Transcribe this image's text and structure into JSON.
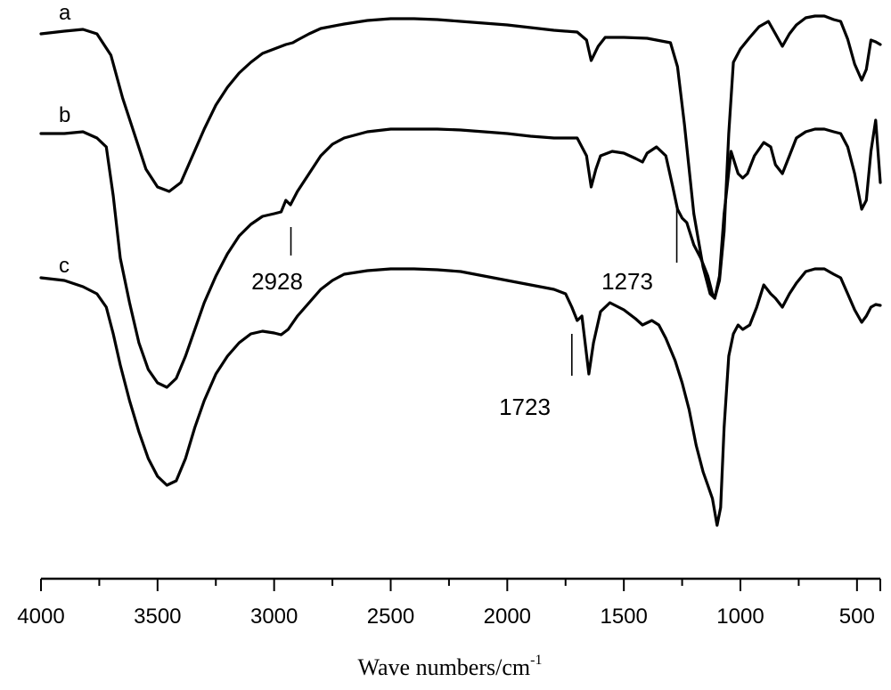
{
  "chart_data": {
    "type": "line",
    "xlabel": "Wave numbers/cm",
    "xlabel_superscript": "-1",
    "ylabel": "",
    "xlim": [
      4000,
      400
    ],
    "x_reversed": true,
    "grid": false,
    "ticks": [
      4000,
      3500,
      3000,
      2500,
      2000,
      1500,
      1000,
      500
    ],
    "tick_labels": [
      "4000",
      "3500",
      "3000",
      "2500",
      "2000",
      "1500",
      "1000",
      "500"
    ],
    "series": [
      {
        "name": "a",
        "points": [
          [
            4000,
            38
          ],
          [
            3900,
            35
          ],
          [
            3820,
            33
          ],
          [
            3760,
            38
          ],
          [
            3700,
            62
          ],
          [
            3650,
            110
          ],
          [
            3600,
            150
          ],
          [
            3550,
            190
          ],
          [
            3500,
            210
          ],
          [
            3450,
            215
          ],
          [
            3400,
            205
          ],
          [
            3350,
            175
          ],
          [
            3300,
            145
          ],
          [
            3250,
            118
          ],
          [
            3200,
            98
          ],
          [
            3150,
            82
          ],
          [
            3100,
            70
          ],
          [
            3050,
            60
          ],
          [
            3000,
            55
          ],
          [
            2950,
            50
          ],
          [
            2920,
            48
          ],
          [
            2900,
            45
          ],
          [
            2850,
            38
          ],
          [
            2800,
            32
          ],
          [
            2700,
            27
          ],
          [
            2600,
            23
          ],
          [
            2500,
            21
          ],
          [
            2400,
            21
          ],
          [
            2300,
            22
          ],
          [
            2200,
            24
          ],
          [
            2100,
            26
          ],
          [
            2000,
            28
          ],
          [
            1900,
            31
          ],
          [
            1800,
            34
          ],
          [
            1700,
            36
          ],
          [
            1660,
            45
          ],
          [
            1640,
            68
          ],
          [
            1610,
            52
          ],
          [
            1580,
            42
          ],
          [
            1500,
            42
          ],
          [
            1400,
            43
          ],
          [
            1300,
            48
          ],
          [
            1270,
            75
          ],
          [
            1240,
            140
          ],
          [
            1200,
            240
          ],
          [
            1160,
            300
          ],
          [
            1130,
            330
          ],
          [
            1110,
            335
          ],
          [
            1090,
            315
          ],
          [
            1070,
            260
          ],
          [
            1050,
            150
          ],
          [
            1030,
            70
          ],
          [
            1000,
            55
          ],
          [
            960,
            42
          ],
          [
            920,
            30
          ],
          [
            880,
            24
          ],
          [
            850,
            38
          ],
          [
            820,
            52
          ],
          [
            790,
            38
          ],
          [
            760,
            28
          ],
          [
            720,
            20
          ],
          [
            680,
            18
          ],
          [
            640,
            18
          ],
          [
            600,
            22
          ],
          [
            570,
            24
          ],
          [
            540,
            44
          ],
          [
            510,
            72
          ],
          [
            480,
            90
          ],
          [
            460,
            78
          ],
          [
            440,
            45
          ],
          [
            420,
            47
          ],
          [
            400,
            50
          ]
        ]
      },
      {
        "name": "b",
        "points": [
          [
            4000,
            150
          ],
          [
            3900,
            150
          ],
          [
            3820,
            148
          ],
          [
            3760,
            155
          ],
          [
            3720,
            165
          ],
          [
            3690,
            220
          ],
          [
            3660,
            290
          ],
          [
            3620,
            340
          ],
          [
            3580,
            385
          ],
          [
            3540,
            415
          ],
          [
            3500,
            430
          ],
          [
            3460,
            435
          ],
          [
            3420,
            425
          ],
          [
            3380,
            400
          ],
          [
            3340,
            370
          ],
          [
            3300,
            340
          ],
          [
            3250,
            310
          ],
          [
            3200,
            285
          ],
          [
            3150,
            265
          ],
          [
            3100,
            252
          ],
          [
            3050,
            243
          ],
          [
            3000,
            240
          ],
          [
            2970,
            238
          ],
          [
            2950,
            225
          ],
          [
            2930,
            230
          ],
          [
            2900,
            215
          ],
          [
            2850,
            195
          ],
          [
            2800,
            175
          ],
          [
            2750,
            162
          ],
          [
            2700,
            155
          ],
          [
            2600,
            148
          ],
          [
            2500,
            145
          ],
          [
            2400,
            145
          ],
          [
            2300,
            145
          ],
          [
            2200,
            146
          ],
          [
            2100,
            148
          ],
          [
            2000,
            150
          ],
          [
            1900,
            153
          ],
          [
            1800,
            155
          ],
          [
            1700,
            155
          ],
          [
            1660,
            175
          ],
          [
            1640,
            210
          ],
          [
            1620,
            190
          ],
          [
            1600,
            175
          ],
          [
            1550,
            170
          ],
          [
            1500,
            172
          ],
          [
            1450,
            178
          ],
          [
            1420,
            182
          ],
          [
            1400,
            172
          ],
          [
            1360,
            165
          ],
          [
            1320,
            175
          ],
          [
            1290,
            210
          ],
          [
            1270,
            235
          ],
          [
            1250,
            245
          ],
          [
            1230,
            250
          ],
          [
            1200,
            275
          ],
          [
            1170,
            290
          ],
          [
            1140,
            310
          ],
          [
            1120,
            330
          ],
          [
            1110,
            335
          ],
          [
            1090,
            310
          ],
          [
            1070,
            240
          ],
          [
            1040,
            170
          ],
          [
            1010,
            195
          ],
          [
            990,
            200
          ],
          [
            970,
            195
          ],
          [
            940,
            175
          ],
          [
            900,
            160
          ],
          [
            870,
            165
          ],
          [
            850,
            185
          ],
          [
            820,
            195
          ],
          [
            790,
            175
          ],
          [
            760,
            155
          ],
          [
            720,
            148
          ],
          [
            680,
            145
          ],
          [
            640,
            145
          ],
          [
            600,
            148
          ],
          [
            570,
            150
          ],
          [
            540,
            165
          ],
          [
            510,
            195
          ],
          [
            480,
            235
          ],
          [
            460,
            225
          ],
          [
            440,
            170
          ],
          [
            420,
            135
          ],
          [
            400,
            205
          ]
        ]
      },
      {
        "name": "c",
        "points": [
          [
            4000,
            312
          ],
          [
            3900,
            315
          ],
          [
            3820,
            322
          ],
          [
            3760,
            330
          ],
          [
            3720,
            345
          ],
          [
            3690,
            375
          ],
          [
            3660,
            410
          ],
          [
            3620,
            450
          ],
          [
            3580,
            485
          ],
          [
            3540,
            515
          ],
          [
            3500,
            535
          ],
          [
            3460,
            545
          ],
          [
            3420,
            540
          ],
          [
            3380,
            515
          ],
          [
            3340,
            480
          ],
          [
            3300,
            450
          ],
          [
            3250,
            420
          ],
          [
            3200,
            400
          ],
          [
            3150,
            385
          ],
          [
            3100,
            375
          ],
          [
            3050,
            372
          ],
          [
            3000,
            374
          ],
          [
            2970,
            376
          ],
          [
            2940,
            370
          ],
          [
            2900,
            355
          ],
          [
            2850,
            340
          ],
          [
            2800,
            325
          ],
          [
            2750,
            315
          ],
          [
            2700,
            308
          ],
          [
            2600,
            304
          ],
          [
            2500,
            302
          ],
          [
            2400,
            302
          ],
          [
            2300,
            303
          ],
          [
            2200,
            305
          ],
          [
            2100,
            310
          ],
          [
            2000,
            315
          ],
          [
            1900,
            320
          ],
          [
            1800,
            325
          ],
          [
            1750,
            330
          ],
          [
            1723,
            345
          ],
          [
            1700,
            360
          ],
          [
            1680,
            355
          ],
          [
            1650,
            420
          ],
          [
            1630,
            385
          ],
          [
            1600,
            350
          ],
          [
            1560,
            340
          ],
          [
            1500,
            348
          ],
          [
            1450,
            358
          ],
          [
            1420,
            365
          ],
          [
            1380,
            360
          ],
          [
            1350,
            365
          ],
          [
            1320,
            380
          ],
          [
            1280,
            405
          ],
          [
            1250,
            430
          ],
          [
            1220,
            460
          ],
          [
            1190,
            500
          ],
          [
            1160,
            530
          ],
          [
            1140,
            545
          ],
          [
            1120,
            560
          ],
          [
            1100,
            590
          ],
          [
            1085,
            570
          ],
          [
            1070,
            480
          ],
          [
            1050,
            400
          ],
          [
            1030,
            375
          ],
          [
            1010,
            365
          ],
          [
            990,
            370
          ],
          [
            960,
            365
          ],
          [
            930,
            345
          ],
          [
            900,
            320
          ],
          [
            870,
            330
          ],
          [
            850,
            335
          ],
          [
            820,
            345
          ],
          [
            790,
            330
          ],
          [
            760,
            318
          ],
          [
            720,
            305
          ],
          [
            680,
            302
          ],
          [
            640,
            302
          ],
          [
            600,
            308
          ],
          [
            570,
            312
          ],
          [
            540,
            330
          ],
          [
            510,
            348
          ],
          [
            480,
            362
          ],
          [
            460,
            355
          ],
          [
            440,
            345
          ],
          [
            420,
            342
          ],
          [
            400,
            343
          ]
        ]
      }
    ],
    "annotations": [
      {
        "label": "2928",
        "x": 2928
      },
      {
        "label": "1273",
        "x": 1273
      },
      {
        "label": "1723",
        "x": 1723
      }
    ]
  }
}
